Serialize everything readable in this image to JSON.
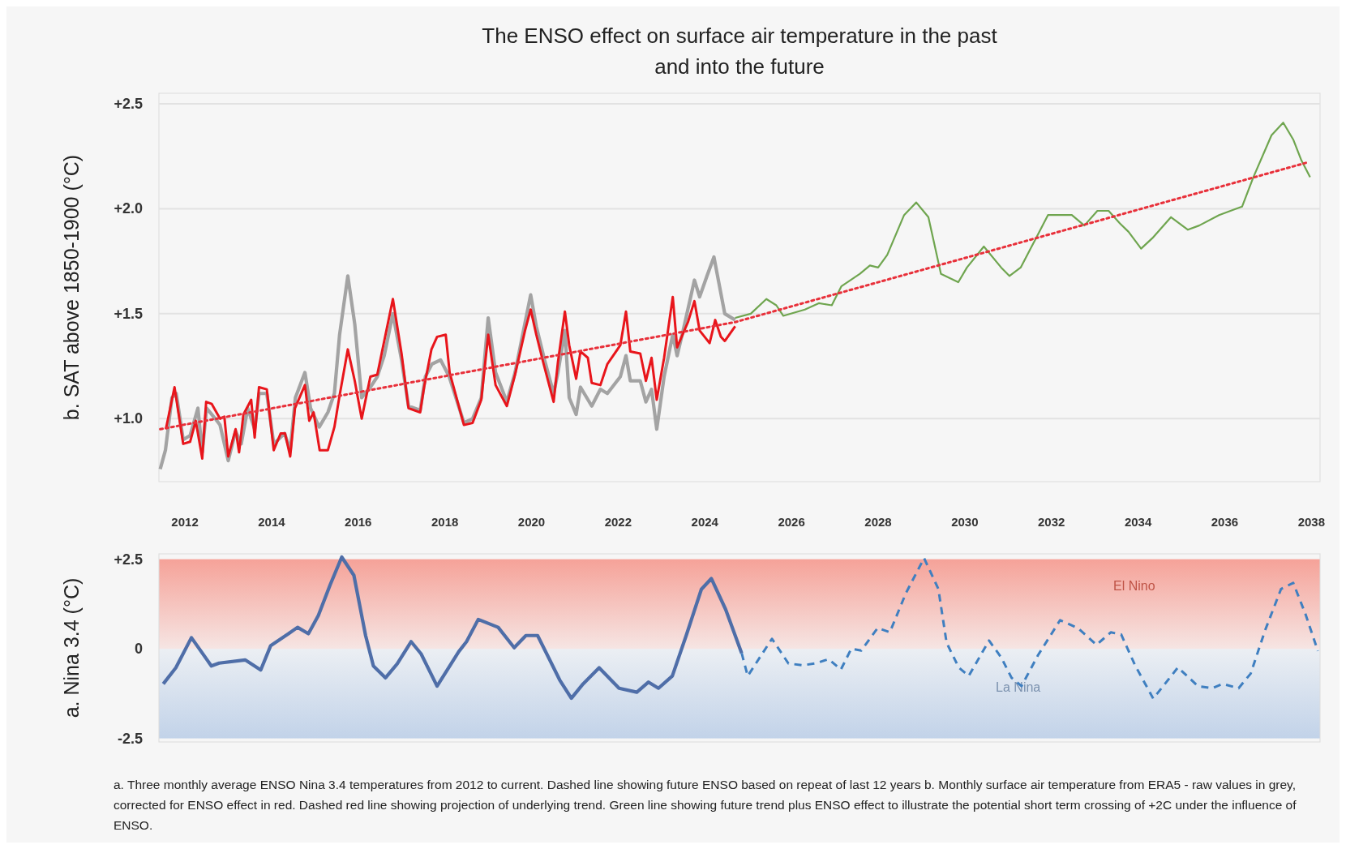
{
  "chart_data": [
    {
      "type": "line",
      "title": "The ENSO effect on surface air temperature in the past and into the future",
      "ylabel": "b. SAT above 1850-1900 (°C)",
      "xlim": [
        2011.4,
        2038.2
      ],
      "ylim": [
        0.7,
        2.55
      ],
      "yticks": [
        {
          "value": 1.0,
          "label": "+1.0"
        },
        {
          "value": 1.5,
          "label": "+1.5"
        },
        {
          "value": 2.0,
          "label": "+2.0"
        },
        {
          "value": 2.5,
          "label": "+2.5"
        }
      ],
      "grid": "y",
      "tick_labels": "y",
      "series": [
        {
          "color": "#a3a3a3",
          "x": [
            2011.43,
            2011.55,
            2011.7,
            2011.8,
            2011.96,
            2012.12,
            2012.3,
            2012.4,
            2012.5,
            2012.7,
            2012.81,
            2013.0,
            2013.17,
            2013.3,
            2013.45,
            2013.61,
            2013.71,
            2013.89,
            2014.05,
            2014.3,
            2014.43,
            2014.55,
            2014.77,
            2014.9,
            2015.1,
            2015.3,
            2015.45,
            2015.57,
            2015.76,
            2015.92,
            2016.08,
            2016.28,
            2016.44,
            2016.6,
            2016.8,
            2017.0,
            2017.16,
            2017.43,
            2017.55,
            2017.7,
            2017.9,
            2018.1,
            2018.44,
            2018.64,
            2018.84,
            2019.0,
            2019.17,
            2019.43,
            2019.62,
            2019.98,
            2020.11,
            2020.3,
            2020.51,
            2020.61,
            2020.77,
            2020.87,
            2021.03,
            2021.13,
            2021.39,
            2021.59,
            2021.75,
            2022.05,
            2022.18,
            2022.28,
            2022.51,
            2022.64,
            2022.77,
            2022.89,
            2023.06,
            2023.26,
            2023.36,
            2023.5,
            2023.76,
            2023.88,
            2024.05,
            2024.21,
            2024.46,
            2024.7
          ],
          "values": [
            0.76,
            0.85,
            1.1,
            1.12,
            0.9,
            0.92,
            1.05,
            0.84,
            1.05,
            1.0,
            0.97,
            0.8,
            0.94,
            0.88,
            1.05,
            0.95,
            1.12,
            1.12,
            0.88,
            0.93,
            0.85,
            1.1,
            1.22,
            1.05,
            0.96,
            1.03,
            1.12,
            1.4,
            1.68,
            1.45,
            1.1,
            1.15,
            1.2,
            1.3,
            1.5,
            1.28,
            1.06,
            1.04,
            1.2,
            1.26,
            1.28,
            1.2,
            0.98,
            1.0,
            1.1,
            1.48,
            1.22,
            1.08,
            1.22,
            1.59,
            1.44,
            1.28,
            1.12,
            1.22,
            1.42,
            1.1,
            1.02,
            1.15,
            1.06,
            1.14,
            1.12,
            1.2,
            1.3,
            1.18,
            1.18,
            1.08,
            1.14,
            0.95,
            1.2,
            1.4,
            1.3,
            1.42,
            1.66,
            1.58,
            1.68,
            1.77,
            1.5,
            1.47
          ]
        },
        {
          "color": "#e8151b",
          "x": [
            2011.56,
            2011.76,
            2011.96,
            2012.12,
            2012.25,
            2012.4,
            2012.49,
            2012.62,
            2012.81,
            2012.91,
            2013.0,
            2013.17,
            2013.25,
            2013.35,
            2013.53,
            2013.61,
            2013.71,
            2013.89,
            2014.05,
            2014.21,
            2014.31,
            2014.43,
            2014.54,
            2014.77,
            2014.87,
            2014.97,
            2015.11,
            2015.3,
            2015.45,
            2015.57,
            2015.76,
            2015.92,
            2016.08,
            2016.28,
            2016.44,
            2016.55,
            2016.8,
            2017.0,
            2017.16,
            2017.43,
            2017.52,
            2017.69,
            2017.82,
            2018.02,
            2018.11,
            2018.44,
            2018.64,
            2018.84,
            2019.0,
            2019.17,
            2019.43,
            2019.62,
            2019.85,
            2019.98,
            2020.11,
            2020.28,
            2020.51,
            2020.61,
            2020.77,
            2020.87,
            2021.03,
            2021.13,
            2021.3,
            2021.39,
            2021.59,
            2021.75,
            2022.05,
            2022.18,
            2022.28,
            2022.51,
            2022.64,
            2022.77,
            2022.89,
            2023.06,
            2023.26,
            2023.36,
            2023.61,
            2023.76,
            2023.88,
            2024.11,
            2024.24,
            2024.37,
            2024.46,
            2024.7
          ],
          "values": [
            0.95,
            1.15,
            0.88,
            0.89,
            0.99,
            0.81,
            1.08,
            1.07,
            1.0,
            1.01,
            0.82,
            0.95,
            0.84,
            1.02,
            1.09,
            0.91,
            1.15,
            1.14,
            0.85,
            0.93,
            0.93,
            0.82,
            1.05,
            1.16,
            0.99,
            1.03,
            0.85,
            0.85,
            0.96,
            1.11,
            1.33,
            1.18,
            1.0,
            1.2,
            1.21,
            1.32,
            1.57,
            1.31,
            1.05,
            1.03,
            1.15,
            1.33,
            1.39,
            1.4,
            1.22,
            0.97,
            0.98,
            1.09,
            1.4,
            1.16,
            1.06,
            1.21,
            1.42,
            1.52,
            1.4,
            1.26,
            1.08,
            1.27,
            1.51,
            1.35,
            1.19,
            1.32,
            1.29,
            1.17,
            1.16,
            1.26,
            1.35,
            1.51,
            1.32,
            1.31,
            1.18,
            1.29,
            1.09,
            1.29,
            1.58,
            1.34,
            1.46,
            1.56,
            1.42,
            1.36,
            1.47,
            1.39,
            1.37,
            1.44
          ]
        },
        {
          "color": "#6fa54f",
          "x": [
            2024.7,
            2025.06,
            2025.42,
            2025.65,
            2025.81,
            2026.31,
            2026.63,
            2026.93,
            2027.15,
            2027.58,
            2027.81,
            2028.0,
            2028.21,
            2028.6,
            2028.88,
            2029.16,
            2029.45,
            2029.85,
            2030.05,
            2030.44,
            2030.84,
            2031.03,
            2031.29,
            2031.62,
            2031.92,
            2032.47,
            2032.76,
            2033.06,
            2033.32,
            2033.58,
            2033.78,
            2034.07,
            2034.33,
            2034.76,
            2035.15,
            2035.41,
            2035.87,
            2036.4,
            2036.66,
            2037.08,
            2037.35,
            2037.58,
            2037.77,
            2037.97
          ],
          "values": [
            1.48,
            1.5,
            1.57,
            1.54,
            1.49,
            1.52,
            1.55,
            1.54,
            1.63,
            1.69,
            1.73,
            1.72,
            1.78,
            1.97,
            2.03,
            1.96,
            1.69,
            1.65,
            1.72,
            1.82,
            1.72,
            1.68,
            1.72,
            1.85,
            1.97,
            1.97,
            1.92,
            1.99,
            1.99,
            1.93,
            1.89,
            1.81,
            1.86,
            1.96,
            1.9,
            1.92,
            1.97,
            2.01,
            2.15,
            2.35,
            2.41,
            2.33,
            2.23,
            2.15
          ]
        },
        {
          "color": "#e8303a",
          "line_style": "dotted",
          "x": [
            2011.43,
            2024.7,
            2037.9
          ],
          "values": [
            0.95,
            1.46,
            2.22
          ]
        }
      ]
    },
    {
      "type": "line",
      "ylabel": "a. Nina 3.4 (°C)",
      "xlim": [
        2011.4,
        2038.2
      ],
      "xticks": [
        2012,
        2014,
        2016,
        2018,
        2020,
        2022,
        2024,
        2026,
        2028,
        2030,
        2032,
        2034,
        2036,
        2038
      ],
      "ylim": [
        -2.6,
        2.65
      ],
      "yticks": [
        -2.5,
        0,
        {
          "value": 2.5,
          "label": "+2.5"
        }
      ],
      "bands": [
        {
          "axis": "y",
          "from": 0,
          "to": 2.5,
          "label": "El Nino",
          "color": "#f56a5a"
        },
        {
          "axis": "y",
          "from": -2.5,
          "to": 0,
          "label": "La Nina",
          "color": "#9fbbe0"
        }
      ],
      "annotations": [
        "a. Three monthly average ENSO Nina 3.4 temperatures from 2012 to current. Dashed line showing future ENSO based on repeat of last 12 years b. Monthly surface air temperature from ERA5 - raw values in grey, corrected for ENSO effect in red. Dashed red line showing projection of underlying trend. Green line showing future trend plus ENSO effect to illustrate the potential short term crossing of +2C under the influence of ENSO."
      ],
      "series": [
        {
          "color": "#4f6ea8",
          "x": [
            2011.5,
            2011.79,
            2012.15,
            2012.61,
            2012.79,
            2013.39,
            2013.75,
            2013.98,
            2014.39,
            2014.6,
            2014.85,
            2015.08,
            2015.35,
            2015.62,
            2015.9,
            2016.17,
            2016.35,
            2016.63,
            2016.9,
            2017.22,
            2017.45,
            2017.82,
            2018.32,
            2018.5,
            2018.77,
            2019.23,
            2019.6,
            2019.87,
            2020.14,
            2020.42,
            2020.65,
            2020.92,
            2021.19,
            2021.56,
            2022.02,
            2022.43,
            2022.7,
            2022.93,
            2023.25,
            2023.57,
            2023.92,
            2024.15,
            2024.48,
            2024.85
          ],
          "values": [
            -0.98,
            -0.53,
            0.31,
            -0.48,
            -0.4,
            -0.31,
            -0.59,
            0.09,
            0.42,
            0.6,
            0.42,
            0.93,
            1.78,
            2.56,
            2.05,
            0.37,
            -0.48,
            -0.81,
            -0.42,
            0.2,
            -0.14,
            -1.04,
            -0.08,
            0.2,
            0.82,
            0.6,
            0.03,
            0.37,
            0.37,
            -0.31,
            -0.87,
            -1.38,
            -0.98,
            -0.53,
            -1.1,
            -1.21,
            -0.93,
            -1.1,
            -0.76,
            0.37,
            1.66,
            1.96,
            1.1,
            -0.12
          ]
        },
        {
          "color": "#3f7fc0",
          "line_style": "dashed",
          "x": [
            2024.85,
            2024.99,
            2025.55,
            2025.93,
            2026.26,
            2026.54,
            2026.86,
            2027.14,
            2027.38,
            2027.61,
            2027.99,
            2028.27,
            2028.64,
            2029.06,
            2029.39,
            2029.58,
            2029.86,
            2030.09,
            2030.56,
            2030.84,
            2031.08,
            2031.31,
            2031.69,
            2032.2,
            2032.62,
            2033.04,
            2033.37,
            2033.61,
            2033.93,
            2034.35,
            2034.92,
            2035.38,
            2035.71,
            2035.95,
            2036.32,
            2036.6,
            2036.93,
            2037.3,
            2037.58,
            2037.86,
            2038.15
          ],
          "values": [
            -0.12,
            -0.76,
            0.28,
            -0.41,
            -0.46,
            -0.41,
            -0.29,
            -0.58,
            0.0,
            -0.05,
            0.58,
            0.46,
            1.55,
            2.53,
            1.67,
            0.17,
            -0.52,
            -0.76,
            0.23,
            -0.24,
            -0.81,
            -1.04,
            -0.18,
            0.8,
            0.57,
            0.11,
            0.46,
            0.4,
            -0.46,
            -1.39,
            -0.52,
            -1.04,
            -1.1,
            -0.98,
            -1.1,
            -0.69,
            0.51,
            1.67,
            1.84,
            0.98,
            -0.06
          ]
        }
      ]
    }
  ]
}
